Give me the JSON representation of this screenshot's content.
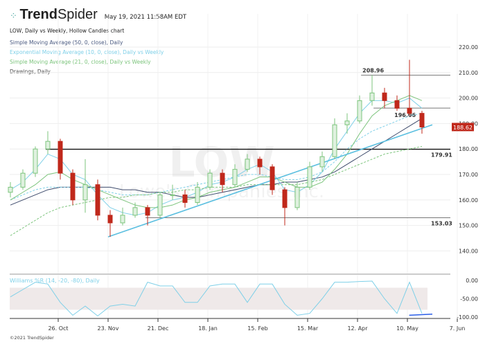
{
  "header": {
    "brand_bold": "Trend",
    "brand_light": "Spider",
    "timestamp": "May 19, 2021 11:58AM EDT",
    "logo_icon": "spider-dots-icon"
  },
  "legend": {
    "chart": "LOW, Daily vs Weekly, Hollow Candles chart",
    "sma50": "Simple Moving Average (50, 0, close), Daily",
    "ema10": "Exponential Moving Average (10, 0, close), Daily vs Weekly",
    "sma21": "Simple Moving Average (21, 0, close), Daily vs Weekly",
    "drawings": "Drawings, Daily",
    "williams": "Williams %R (14, -20, -80), Daily"
  },
  "watermark": {
    "ticker": "LOW",
    "company": "Lowe's Companies Inc."
  },
  "footer": "©2021 TrendSpider",
  "colors": {
    "up": "#7cc47c",
    "down": "#c0281b",
    "sma50": "#3d4a6b",
    "ema10": "#7fd0e8",
    "sma21": "#7cc47c",
    "trend": "#5bbfe0",
    "williams": "#7fd0e8",
    "price_tag": "#c0281b"
  },
  "chart_data": {
    "type": "candlestick",
    "title": "LOW, Daily vs Weekly, Hollow Candles chart",
    "dates": [
      "2020-09-28",
      "2020-10-05",
      "2020-10-12",
      "2020-10-19",
      "2020-10-26",
      "2020-11-02",
      "2020-11-09",
      "2020-11-16",
      "2020-11-23",
      "2020-11-30",
      "2020-12-07",
      "2020-12-14",
      "2020-12-21",
      "2020-12-28",
      "2021-01-04",
      "2021-01-11",
      "2021-01-18",
      "2021-01-25",
      "2021-02-01",
      "2021-02-08",
      "2021-02-15",
      "2021-02-22",
      "2021-03-01",
      "2021-03-08",
      "2021-03-15",
      "2021-03-22",
      "2021-03-29",
      "2021-04-05",
      "2021-04-12",
      "2021-04-19",
      "2021-04-26",
      "2021-05-03",
      "2021-05-10",
      "2021-05-17"
    ],
    "ohlc": [
      [
        163,
        167,
        161,
        165
      ],
      [
        165,
        172,
        164,
        170.5
      ],
      [
        170.5,
        181,
        169,
        180
      ],
      [
        180,
        187,
        178,
        183
      ],
      [
        183,
        184,
        168,
        170.5
      ],
      [
        170.5,
        172,
        158,
        160
      ],
      [
        160,
        176,
        155,
        166
      ],
      [
        166,
        168,
        152,
        154
      ],
      [
        154,
        156,
        145.5,
        151
      ],
      [
        151,
        157,
        150,
        154
      ],
      [
        154,
        159,
        153,
        157
      ],
      [
        157,
        158,
        150,
        154
      ],
      [
        154,
        163,
        153,
        162
      ],
      [
        162,
        166,
        160,
        162
      ],
      [
        162,
        164,
        157,
        159
      ],
      [
        159,
        167,
        158,
        165
      ],
      [
        165,
        172,
        164,
        170.5
      ],
      [
        170.5,
        172,
        163,
        166
      ],
      [
        166,
        174,
        165,
        172
      ],
      [
        172,
        178,
        171,
        176
      ],
      [
        176,
        177,
        170,
        173
      ],
      [
        173,
        174,
        162,
        164
      ],
      [
        164,
        165,
        150,
        157
      ],
      [
        157,
        167,
        156,
        165
      ],
      [
        165,
        175,
        164,
        173
      ],
      [
        173,
        179,
        171,
        177
      ],
      [
        177,
        192,
        176,
        189.5
      ],
      [
        189.5,
        194,
        186,
        191
      ],
      [
        191,
        201,
        190,
        199
      ],
      [
        199,
        209,
        197,
        202
      ],
      [
        202,
        204,
        196,
        199
      ],
      [
        199,
        201,
        195,
        196
      ],
      [
        196,
        215,
        193,
        194
      ],
      [
        194,
        195,
        186,
        188.62
      ]
    ],
    "series": [
      {
        "name": "Simple Moving Average (50, 0, close), Daily",
        "style": "solid",
        "color": "#3d4a6b",
        "values": [
          158,
          160,
          162,
          164,
          165,
          165,
          165,
          165,
          165,
          164,
          164,
          163,
          163,
          162,
          161,
          161,
          162,
          163,
          164,
          165,
          166,
          166,
          167,
          167,
          168,
          169,
          171,
          174,
          177,
          180,
          183,
          186,
          189,
          192
        ]
      },
      {
        "name": "Exponential Moving Average (10, 0, close), Daily",
        "style": "solid",
        "color": "#7fd0e8",
        "values": [
          164,
          167,
          172,
          178,
          176,
          170,
          168,
          162,
          157,
          155,
          154,
          155,
          158,
          160,
          161,
          163,
          166,
          167,
          169,
          172,
          174,
          171,
          164,
          163,
          166,
          171,
          180,
          187,
          194,
          199,
          199,
          198,
          200,
          196
        ]
      },
      {
        "name": "Exponential Moving Average (10, 0, close), Weekly",
        "style": "dashed",
        "color": "#7fd0e8",
        "values": [
          160,
          162,
          164,
          165,
          165,
          165,
          165,
          164,
          163,
          162,
          162,
          162,
          163,
          164,
          165,
          166,
          167,
          168,
          169,
          170,
          170,
          169,
          168,
          168,
          169,
          171,
          175,
          180,
          184,
          187,
          189,
          191,
          193,
          194
        ]
      },
      {
        "name": "Simple Moving Average (21, 0, close), Daily",
        "style": "solid",
        "color": "#7cc47c",
        "values": [
          160,
          163,
          166,
          170,
          171,
          168,
          166,
          164,
          162,
          160,
          158,
          157,
          157,
          158,
          160,
          161,
          163,
          164,
          165,
          167,
          169,
          169,
          167,
          165,
          165,
          167,
          172,
          178,
          186,
          193,
          197,
          199,
          201,
          199
        ]
      },
      {
        "name": "Simple Moving Average (21, 0, close), Weekly",
        "style": "dashed",
        "color": "#7cc47c",
        "values": [
          146,
          149,
          152,
          155,
          157,
          158,
          159,
          160,
          161,
          161,
          162,
          162,
          163,
          163,
          164,
          164,
          165,
          165,
          165,
          166,
          166,
          166,
          166,
          166,
          167,
          168,
          170,
          172,
          174,
          176,
          178,
          179,
          180,
          181
        ]
      }
    ],
    "drawings": {
      "levels": [
        {
          "value": 208.96,
          "label": "208.96",
          "from": "2021-04-14"
        },
        {
          "value": 196.06,
          "label": "196.06",
          "from": "2021-04-21"
        },
        {
          "value": 179.91,
          "label": "179.91",
          "from": "2020-10-19"
        },
        {
          "value": 153.03,
          "label": "153.03",
          "from": "2020-12-14"
        }
      ],
      "trendline": {
        "from": [
          "2020-11-23",
          145.5
        ],
        "to": [
          "2021-05-24",
          189.5
        ]
      }
    },
    "last_price": "188.62",
    "y_ticks": [
      "220.00",
      "210.00",
      "200.00",
      "190.00",
      "180.00",
      "170.00",
      "160.00",
      "150.00",
      "140.00"
    ],
    "ylim": [
      136,
      224
    ],
    "x_ticks": [
      {
        "date": "2020-10-26",
        "label": "26. Oct"
      },
      {
        "date": "2020-11-23",
        "label": "23. Nov"
      },
      {
        "date": "2020-12-21",
        "label": "21. Dec"
      },
      {
        "date": "2021-01-18",
        "label": "18. Jan"
      },
      {
        "date": "2021-02-15",
        "label": "15. Feb"
      },
      {
        "date": "2021-03-15",
        "label": "15. Mar"
      },
      {
        "date": "2021-04-12",
        "label": "12. Apr"
      },
      {
        "date": "2021-05-10",
        "label": "10. May"
      },
      {
        "date": "2021-06-07",
        "label": "7. Jun"
      }
    ],
    "grid": true,
    "indicator": {
      "name": "Williams %R (14, -20, -80), Daily",
      "band": [
        -80,
        -20
      ],
      "ylim": [
        -100,
        0
      ],
      "y_ticks": [
        "0.00",
        "-50.00",
        "-100.00"
      ],
      "values": [
        -45,
        -25,
        -5,
        -10,
        -60,
        -95,
        -70,
        -97,
        -70,
        -65,
        -70,
        -5,
        -15,
        -15,
        -60,
        -60,
        -15,
        -10,
        -10,
        -60,
        -10,
        -10,
        -65,
        -95,
        -90,
        -50,
        -5,
        -5,
        -3,
        -2,
        -50,
        -90,
        -5,
        -90
      ],
      "trendline": {
        "from": [
          "2021-05-11",
          -95
        ],
        "to": [
          "2021-05-24",
          -92
        ]
      }
    }
  }
}
